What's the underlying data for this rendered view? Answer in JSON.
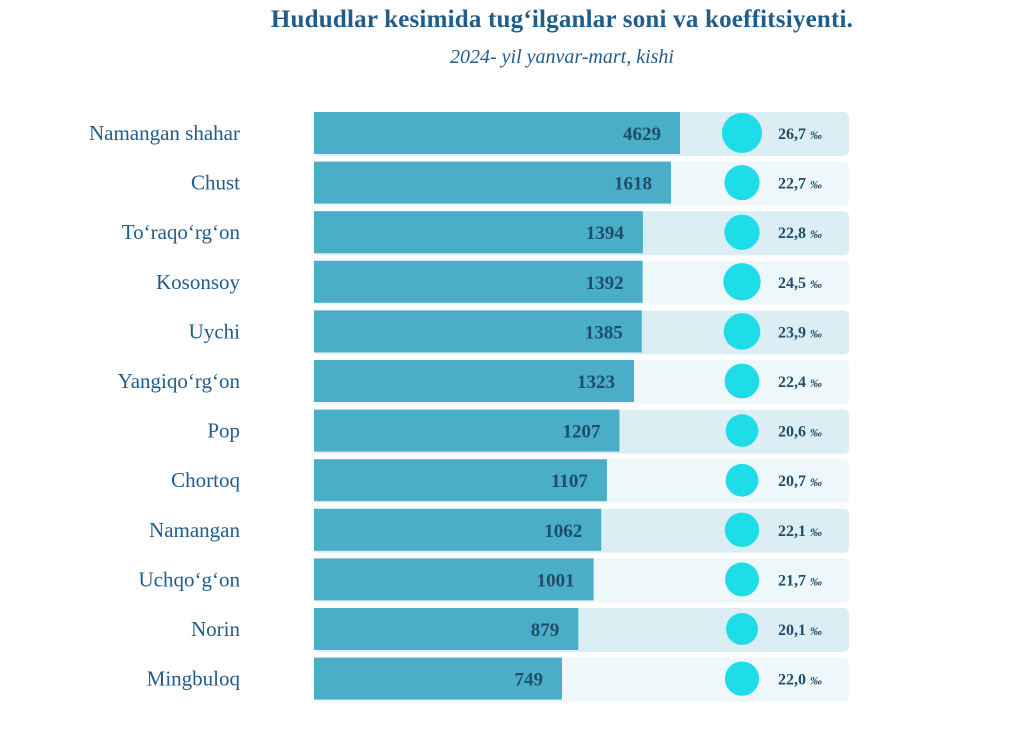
{
  "title": "Hududlar kesimida tug‘ilganlar soni va koeffitsiyenti.",
  "subtitle": "2024- yil yanvar-mart, kishi",
  "colors": {
    "bar": "#4aaec8",
    "track_dark": "#daeef3",
    "track_light": "#eef8fa",
    "bubble": "#1fdde8",
    "label": "#1f5d8c",
    "value": "#1f4e6b"
  },
  "rate_unit": "‰",
  "chart_data": {
    "type": "bar",
    "orientation": "horizontal",
    "title": "Hududlar kesimida tug‘ilganlar soni va koeffitsiyenti.",
    "subtitle": "2024- yil yanvar-mart, kishi",
    "categories": [
      "Namangan shahar",
      "Chust",
      "To‘raqo‘rg‘on",
      "Kosonsoy",
      "Uychi",
      "Yangiqo‘rg‘on",
      "Pop",
      "Chortoq",
      "Namangan",
      "Uchqo‘g‘on",
      "Norin",
      "Mingbuloq"
    ],
    "values": [
      4629,
      1618,
      1394,
      1392,
      1385,
      1323,
      1207,
      1107,
      1062,
      1001,
      879,
      749
    ],
    "value_labels": [
      "4629",
      "1618",
      "1394",
      "1392",
      "1385",
      "1323",
      "1207",
      "1107",
      "1062",
      "1001",
      "879",
      "749"
    ],
    "rates": [
      26.7,
      22.7,
      22.8,
      24.5,
      23.9,
      22.4,
      20.6,
      20.7,
      22.1,
      21.7,
      20.1,
      22.0
    ],
    "rate_labels": [
      "26,7",
      "22,7",
      "22,8",
      "24,5",
      "23,9",
      "22,4",
      "20,6",
      "20,7",
      "22,1",
      "21,7",
      "20,1",
      "22,0"
    ],
    "grid": false,
    "legend": "none"
  }
}
